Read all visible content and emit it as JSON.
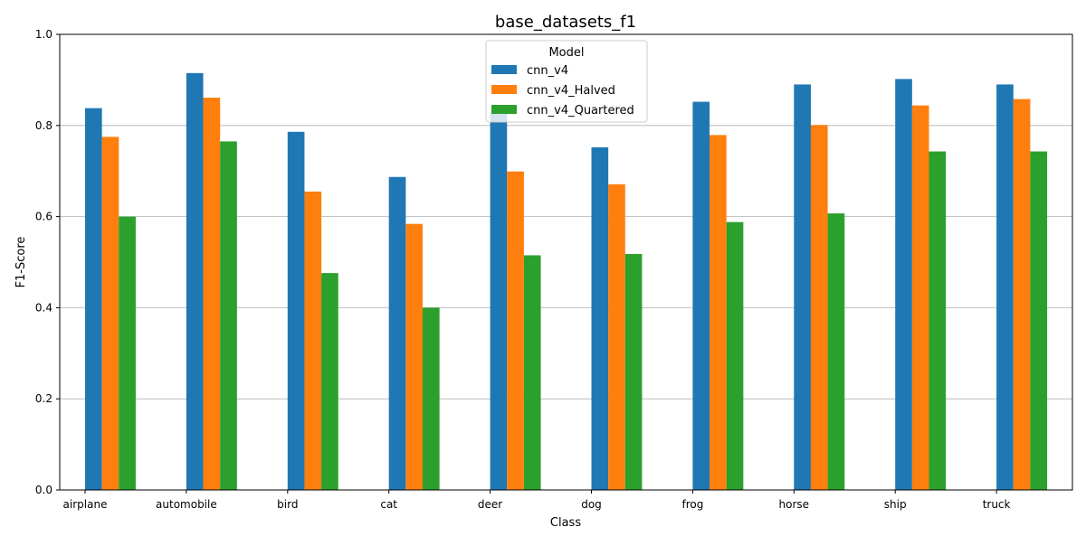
{
  "chart_data": {
    "type": "bar",
    "title": "base_datasets_f1",
    "xlabel": "Class",
    "ylabel": "F1-Score",
    "ylim": [
      0,
      1.0
    ],
    "yticks": [
      "0.0",
      "0.2",
      "0.4",
      "0.6",
      "0.8",
      "1.0"
    ],
    "grid": "horizontal",
    "legend": {
      "title": "Model",
      "placement": "top-center"
    },
    "categories": [
      "airplane",
      "automobile",
      "bird",
      "cat",
      "deer",
      "dog",
      "frog",
      "horse",
      "ship",
      "truck"
    ],
    "series": [
      {
        "name": "cnn_v4",
        "color": "#1f77b4",
        "values": [
          0.838,
          0.915,
          0.786,
          0.687,
          0.826,
          0.752,
          0.852,
          0.89,
          0.902,
          0.89
        ]
      },
      {
        "name": "cnn_v4_Halved",
        "color": "#ff7f0e",
        "values": [
          0.775,
          0.861,
          0.655,
          0.584,
          0.699,
          0.671,
          0.779,
          0.801,
          0.844,
          0.858
        ]
      },
      {
        "name": "cnn_v4_Quartered",
        "color": "#2ca02c",
        "values": [
          0.6,
          0.765,
          0.476,
          0.4,
          0.515,
          0.518,
          0.588,
          0.607,
          0.743,
          0.743
        ]
      }
    ]
  }
}
